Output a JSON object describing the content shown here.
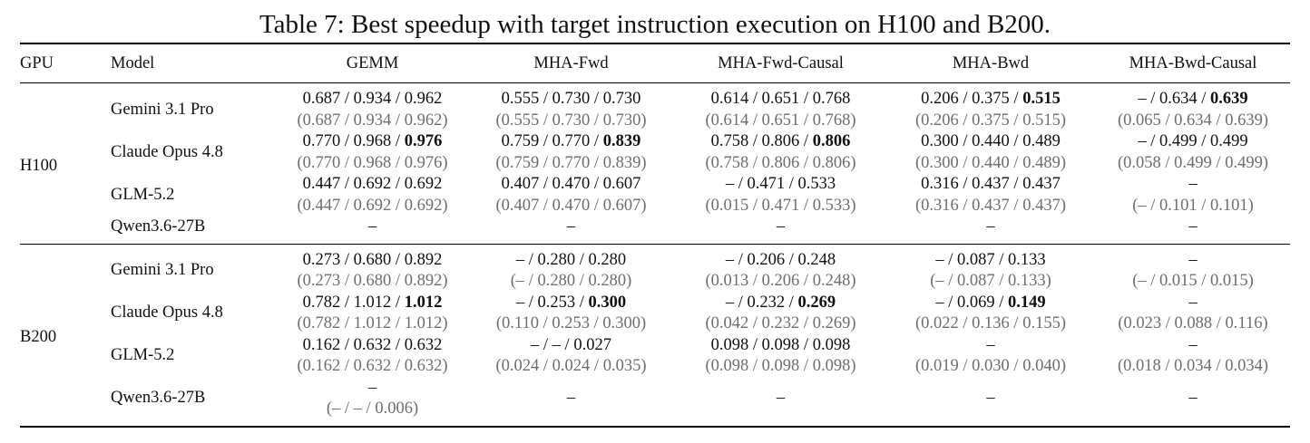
{
  "caption": "Table 7: Best speedup with target instruction execution on H100 and B200.",
  "headers": [
    "GPU",
    "Model",
    "GEMM",
    "MHA-Fwd",
    "MHA-Fwd-Causal",
    "MHA-Bwd",
    "MHA-Bwd-Causal"
  ],
  "groups": [
    {
      "gpu": "H100",
      "rows": [
        {
          "model": "Gemini 3.1 Pro",
          "cells": [
            {
              "main": "0.687 / 0.934 / 0.962",
              "sub": "(0.687 / 0.934 / 0.962)"
            },
            {
              "main": "0.555 / 0.730 / 0.730",
              "sub": "(0.555 / 0.730 / 0.730)"
            },
            {
              "main": "0.614 / 0.651 / 0.768",
              "sub": "(0.614 / 0.651 / 0.768)"
            },
            {
              "main": "0.206 / 0.375 / ",
              "bold": "0.515",
              "sub": "(0.206 / 0.375 / 0.515)"
            },
            {
              "main": "– / 0.634 / ",
              "bold": "0.639",
              "sub": "(0.065 / 0.634 / 0.639)"
            }
          ]
        },
        {
          "model": "Claude Opus 4.8",
          "cells": [
            {
              "main": "0.770 / 0.968 / ",
              "bold": "0.976",
              "sub": "(0.770 / 0.968 / 0.976)"
            },
            {
              "main": "0.759 / 0.770 / ",
              "bold": "0.839",
              "sub": "(0.759 / 0.770 / 0.839)"
            },
            {
              "main": "0.758 / 0.806 / ",
              "bold": "0.806",
              "sub": "(0.758 / 0.806 / 0.806)"
            },
            {
              "main": "0.300 / 0.440 / 0.489",
              "sub": "(0.300 / 0.440 / 0.489)"
            },
            {
              "main": "– / 0.499 / 0.499",
              "sub": "(0.058 / 0.499 / 0.499)"
            }
          ]
        },
        {
          "model": "GLM-5.2",
          "cells": [
            {
              "main": "0.447 / 0.692 / 0.692",
              "sub": "(0.447 / 0.692 / 0.692)"
            },
            {
              "main": "0.407 / 0.470 / 0.607",
              "sub": "(0.407 / 0.470 / 0.607)"
            },
            {
              "main": "– / 0.471 / 0.533",
              "sub": "(0.015 / 0.471 / 0.533)"
            },
            {
              "main": "0.316 / 0.437 / 0.437",
              "sub": "(0.316 / 0.437 / 0.437)"
            },
            {
              "main": "–",
              "sub": "(– / 0.101 / 0.101)"
            }
          ]
        },
        {
          "model": "Qwen3.6-27B",
          "cells": [
            {
              "main": "–"
            },
            {
              "main": "–"
            },
            {
              "main": "–"
            },
            {
              "main": "–"
            },
            {
              "main": "–"
            }
          ]
        }
      ]
    },
    {
      "gpu": "B200",
      "rows": [
        {
          "model": "Gemini 3.1 Pro",
          "cells": [
            {
              "main": "0.273 / 0.680 / 0.892",
              "sub": "(0.273 / 0.680 / 0.892)"
            },
            {
              "main": "– / 0.280 / 0.280",
              "sub": "(– / 0.280 / 0.280)"
            },
            {
              "main": "– / 0.206 / 0.248",
              "sub": "(0.013 / 0.206 / 0.248)"
            },
            {
              "main": "– / 0.087 / 0.133",
              "sub": "(– / 0.087 / 0.133)"
            },
            {
              "main": "–",
              "sub": "(– / 0.015 / 0.015)"
            }
          ]
        },
        {
          "model": "Claude Opus 4.8",
          "cells": [
            {
              "main": "0.782 / 1.012 / ",
              "bold": "1.012",
              "sub": "(0.782 / 1.012 / 1.012)"
            },
            {
              "main": "– / 0.253 / ",
              "bold": "0.300",
              "sub": "(0.110 / 0.253 / 0.300)"
            },
            {
              "main": "– / 0.232 / ",
              "bold": "0.269",
              "sub": "(0.042 / 0.232 / 0.269)"
            },
            {
              "main": "– / 0.069 / ",
              "bold": "0.149",
              "sub": "(0.022 / 0.136 / 0.155)"
            },
            {
              "main": "–",
              "sub": "(0.023 / 0.088 / 0.116)"
            }
          ]
        },
        {
          "model": "GLM-5.2",
          "cells": [
            {
              "main": "0.162 / 0.632 / 0.632",
              "sub": "(0.162 / 0.632 / 0.632)"
            },
            {
              "main": "– / – / 0.027",
              "sub": "(0.024 / 0.024 / 0.035)"
            },
            {
              "main": "0.098 / 0.098 / 0.098",
              "sub": "(0.098 / 0.098 / 0.098)"
            },
            {
              "main": "–",
              "sub": "(0.019 / 0.030 / 0.040)"
            },
            {
              "main": "–",
              "sub": "(0.018 / 0.034 / 0.034)"
            }
          ]
        },
        {
          "model": "Qwen3.6-27B",
          "cells": [
            {
              "main": "–",
              "sub": "(– / – / 0.006)"
            },
            {
              "main": "–"
            },
            {
              "main": "–"
            },
            {
              "main": "–"
            },
            {
              "main": "–"
            }
          ]
        }
      ]
    }
  ]
}
